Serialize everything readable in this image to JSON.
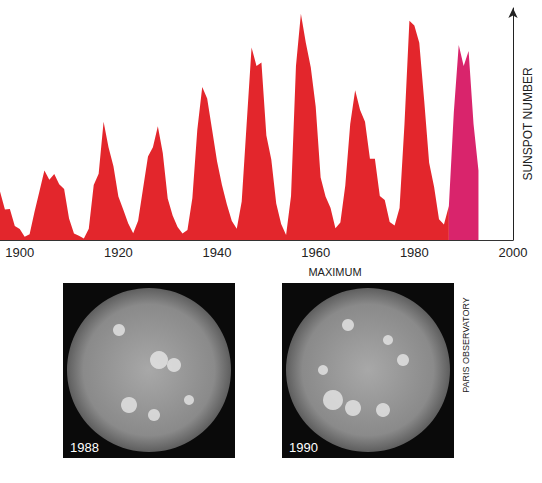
{
  "chart_data": {
    "type": "area",
    "y_label": "SUNSPOT NUMBER",
    "annotations": [
      "MAXIMUM"
    ],
    "x": [
      1896,
      1897,
      1898,
      1899,
      1900,
      1901,
      1902,
      1903,
      1904,
      1905,
      1906,
      1907,
      1908,
      1909,
      1910,
      1911,
      1912,
      1913,
      1914,
      1915,
      1916,
      1917,
      1918,
      1919,
      1920,
      1921,
      1922,
      1923,
      1924,
      1925,
      1926,
      1927,
      1928,
      1929,
      1930,
      1931,
      1932,
      1933,
      1934,
      1935,
      1936,
      1937,
      1938,
      1939,
      1940,
      1941,
      1942,
      1943,
      1944,
      1945,
      1946,
      1947,
      1948,
      1949,
      1950,
      1951,
      1952,
      1953,
      1954,
      1955,
      1956,
      1957,
      1958,
      1959,
      1960,
      1961,
      1962,
      1963,
      1964,
      1965,
      1966,
      1967,
      1968,
      1969,
      1970,
      1971,
      1972,
      1973,
      1974,
      1975,
      1976,
      1977,
      1978,
      1979,
      1980,
      1981,
      1982,
      1983,
      1984,
      1985,
      1986,
      1987,
      1988,
      1989,
      1990,
      1991,
      1992,
      1993
    ],
    "series": [
      {
        "color": "#f7a81b",
        "values": [
          41.8,
          26.2,
          26.7,
          12.1,
          9.5,
          2.7,
          5.0,
          24.4,
          42.0,
          60,
          52,
          57,
          48,
          43.9,
          18.6,
          5.7,
          3.6,
          1.4,
          9.6,
          47.4,
          57.1,
          102,
          80,
          63.6,
          37.6,
          26.1,
          14.2,
          5.8,
          16.7,
          44.3,
          72,
          80,
          98,
          75,
          35.7,
          21.2,
          11.1,
          5.7,
          8.7,
          36.1,
          95,
          132,
          122,
          95,
          67.8,
          47.5,
          30.6,
          16.3,
          9.6,
          33.2,
          100,
          166,
          150,
          153,
          90,
          69.4,
          31.5,
          13.9,
          4.4,
          38,
          150,
          195,
          170,
          149,
          115,
          53.9,
          37.6,
          27.9,
          10.2,
          15.1,
          47,
          100,
          129,
          112,
          102,
          70,
          70,
          38,
          34.5,
          15.5,
          12.6,
          27.5,
          100,
          189,
          185,
          170,
          120,
          66.6,
          45.9,
          17.9,
          13.4,
          29.4,
          null,
          null,
          null,
          null,
          null,
          null
        ]
      },
      {
        "color": "#ec6a8c",
        "values": [
          null,
          null,
          null,
          null,
          null,
          null,
          null,
          null,
          null,
          null,
          null,
          null,
          null,
          null,
          null,
          null,
          null,
          null,
          null,
          null,
          null,
          null,
          null,
          null,
          null,
          null,
          null,
          null,
          null,
          null,
          null,
          null,
          null,
          null,
          null,
          null,
          null,
          null,
          null,
          null,
          null,
          null,
          null,
          null,
          null,
          null,
          null,
          null,
          null,
          null,
          null,
          null,
          null,
          null,
          null,
          null,
          null,
          null,
          null,
          null,
          null,
          null,
          null,
          null,
          null,
          null,
          null,
          null,
          null,
          null,
          null,
          null,
          null,
          null,
          null,
          null,
          null,
          null,
          null,
          null,
          null,
          null,
          null,
          null,
          null,
          null,
          null,
          null,
          null,
          null,
          null,
          29.4,
          110,
          168,
          150,
          163,
          100,
          60
        ]
      }
    ],
    "xlim": [
      1896,
      2000
    ],
    "xticks": [
      1900,
      1920,
      1940,
      1960,
      1980,
      2000
    ],
    "ylim": [
      0,
      200
    ],
    "tick_labels": "x",
    "grid": false
  },
  "photos": [
    {
      "label": "1988"
    },
    {
      "label": "1990"
    }
  ],
  "credit": "PARIS OBSERVATORY"
}
